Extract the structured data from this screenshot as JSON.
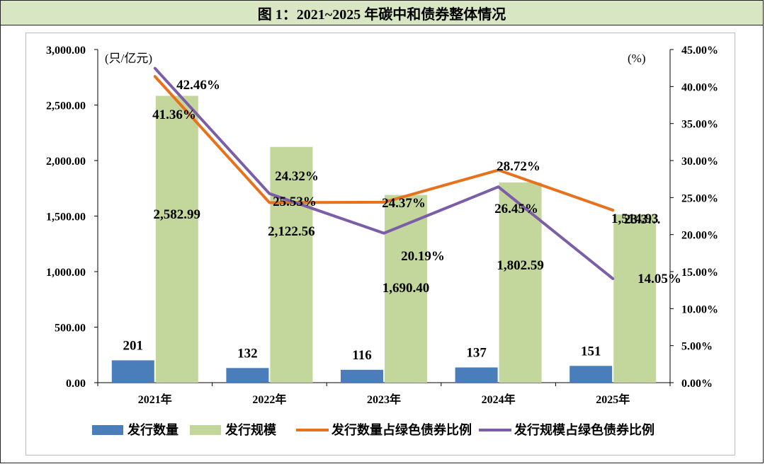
{
  "header": {
    "title": "图 1：2021~2025 年碳中和债券整体情况"
  },
  "chart_data": {
    "type": "bar",
    "categories": [
      "2021年",
      "2022年",
      "2023年",
      "2024年",
      "2025年"
    ],
    "series": [
      {
        "name": "发行数量",
        "kind": "bar",
        "axis": "left",
        "color": "#4a7ebb",
        "values": [
          201,
          132,
          116,
          137,
          151
        ],
        "labels": [
          "201",
          "132",
          "116",
          "137",
          "151"
        ]
      },
      {
        "name": "发行规模",
        "kind": "bar",
        "axis": "left",
        "color": "#c3d69b",
        "values": [
          2582.99,
          2122.56,
          1690.4,
          1802.59,
          1514.93
        ],
        "labels": [
          "2,582.99",
          "2,122.56",
          "1,690.40",
          "1,802.59",
          "1,514.93"
        ]
      },
      {
        "name": "发行数量占绿色债券比例",
        "kind": "line",
        "axis": "right",
        "color": "#e8711c",
        "values": [
          41.36,
          24.32,
          24.37,
          28.72,
          23.3
        ],
        "labels": [
          "41.36%",
          "24.32%",
          "24.37%",
          "28.72%",
          "23.3…"
        ]
      },
      {
        "name": "发行规模占绿色债券比例",
        "kind": "line",
        "axis": "right",
        "color": "#7b5ea7",
        "values": [
          42.46,
          25.53,
          20.19,
          26.45,
          14.05
        ],
        "labels": [
          "42.46%",
          "25.53%",
          "20.19%",
          "26.45%",
          "14.05%"
        ]
      }
    ],
    "y_left": {
      "unit_label": "(只/亿元)",
      "ylim": [
        0,
        3000
      ],
      "ticks": [
        "0.00",
        "500.00",
        "1,000.00",
        "1,500.00",
        "2,000.00",
        "2,500.00",
        "3,000.00"
      ]
    },
    "y_right": {
      "unit_label": "(%)",
      "ylim": [
        0,
        45
      ],
      "ticks": [
        "0.00%",
        "5.00%",
        "10.00%",
        "15.00%",
        "20.00%",
        "25.00%",
        "30.00%",
        "35.00%",
        "40.00%",
        "45.00%"
      ]
    },
    "legend_position": "bottom"
  }
}
